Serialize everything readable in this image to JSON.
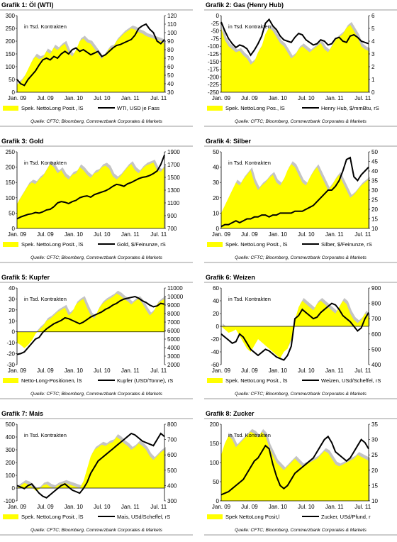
{
  "colors": {
    "fill": "#ffff00",
    "shadow": "#c4c4c4",
    "line": "#000000",
    "rule": "#999999"
  },
  "chart_data": [
    {
      "type": "area",
      "title": "Grafik 1: Öl (WTI)",
      "inner_label": "in Tsd. Kontrakten",
      "x_labels": [
        "Jan. 09",
        "Jul. 09",
        "Jan. 10",
        "Jul. 10",
        "Jan. 11",
        "Jul. 11"
      ],
      "left_axis": {
        "ticks": [
          "300",
          "250",
          "200",
          "150",
          "100",
          "50",
          "0"
        ],
        "ylim": [
          0,
          300
        ]
      },
      "right_axis": {
        "ticks": [
          "120",
          "110",
          "100",
          "90",
          "80",
          "70",
          "60",
          "50",
          "40",
          "30"
        ],
        "ylim": [
          30,
          120
        ]
      },
      "series": [
        {
          "name": "Spek. NettoLong Posit., lS",
          "axis": "left",
          "values": [
            30,
            40,
            60,
            90,
            120,
            140,
            130,
            135,
            160,
            150,
            175,
            165,
            180,
            190,
            155,
            140,
            165,
            200,
            210,
            195,
            190,
            170,
            150,
            130,
            150,
            170,
            175,
            200,
            215,
            230,
            240,
            250,
            245,
            235,
            230,
            220,
            215,
            210,
            205,
            200,
            190
          ]
        },
        {
          "name": "WTI, USD je Fass",
          "axis": "right",
          "values": [
            45,
            40,
            38,
            45,
            50,
            55,
            62,
            68,
            70,
            68,
            72,
            70,
            75,
            78,
            75,
            80,
            82,
            78,
            80,
            77,
            74,
            76,
            78,
            72,
            74,
            78,
            82,
            85,
            86,
            88,
            90,
            92,
            97,
            105,
            108,
            110,
            104,
            100,
            90,
            87,
            92
          ]
        }
      ],
      "source": "Quelle: CFTC; Bloomberg, Commerzbank Corporates & Markets"
    },
    {
      "type": "area",
      "title": "Grafik 2: Gas (Henry Hub)",
      "inner_label": "in Tsd. Kontrakten",
      "x_labels": [
        "Jan. 09",
        "Jul. 09",
        "Jan. 10",
        "Jul. 10",
        "Jan. 11",
        "Jul. 11"
      ],
      "left_axis": {
        "ticks": [
          "0",
          "-25",
          "-50",
          "-75",
          "-100",
          "-125",
          "-150",
          "-175",
          "-200",
          "-225",
          "-250"
        ],
        "ylim": [
          -250,
          0
        ]
      },
      "right_axis": {
        "ticks": [
          "6",
          "5",
          "4",
          "3",
          "2",
          "1",
          "0"
        ],
        "ylim": [
          0,
          6
        ]
      },
      "series": [
        {
          "name": "Spek. NettoLong Pos., lS",
          "axis": "left",
          "values": [
            -40,
            -80,
            -100,
            -110,
            -120,
            -115,
            -130,
            -140,
            -160,
            -150,
            -120,
            -100,
            -60,
            -40,
            -50,
            -70,
            -90,
            -100,
            -120,
            -140,
            -130,
            -110,
            -100,
            -110,
            -120,
            -110,
            -100,
            -90,
            -110,
            -120,
            -100,
            -80,
            -70,
            -60,
            -40,
            -30,
            -50,
            -70,
            -100,
            -110,
            -115
          ]
        },
        {
          "name": "Henry Hub, $/mmBtu, rS",
          "axis": "right",
          "values": [
            5.5,
            4.8,
            4.2,
            3.8,
            3.5,
            3.7,
            3.6,
            3.4,
            2.9,
            3.3,
            3.8,
            4.4,
            5.4,
            5.7,
            5.2,
            4.9,
            4.4,
            4.1,
            4.0,
            3.9,
            4.3,
            4.6,
            4.5,
            4.1,
            3.9,
            3.7,
            3.8,
            4.1,
            4.0,
            3.7,
            3.8,
            4.2,
            4.3,
            4.0,
            3.9,
            4.4,
            4.5,
            4.3,
            4.0,
            3.9,
            3.8
          ]
        }
      ],
      "source": "Quelle: CFTC; Bloomberg, Commerzbank Corporates & Markets"
    },
    {
      "type": "area",
      "title": "Grafik 3: Gold",
      "inner_label": "in Tsd. Kontrakten",
      "x_labels": [
        "Jan. 09",
        "Jul. 09",
        "Jan. 10",
        "Jul. 10",
        "Jan. 11",
        "Jul. 11"
      ],
      "left_axis": {
        "ticks": [
          "250",
          "200",
          "150",
          "100",
          "50",
          "0"
        ],
        "ylim": [
          0,
          250
        ]
      },
      "right_axis": {
        "ticks": [
          "1900",
          "1700",
          "1500",
          "1300",
          "1100",
          "900",
          "700"
        ],
        "ylim": [
          700,
          1900
        ]
      },
      "series": [
        {
          "name": "Spek. NettoLong Posit., lS",
          "axis": "left",
          "values": [
            80,
            100,
            120,
            140,
            150,
            145,
            160,
            170,
            190,
            210,
            200,
            180,
            190,
            170,
            160,
            175,
            180,
            200,
            190,
            175,
            165,
            180,
            185,
            200,
            205,
            195,
            170,
            160,
            170,
            185,
            200,
            210,
            190,
            180,
            195,
            205,
            210,
            215,
            190,
            185,
            200
          ]
        },
        {
          "name": "Gold, $/Feinunze, rS",
          "axis": "right",
          "values": [
            850,
            880,
            900,
            920,
            930,
            950,
            940,
            960,
            990,
            1000,
            1040,
            1100,
            1120,
            1110,
            1090,
            1120,
            1140,
            1180,
            1200,
            1210,
            1190,
            1230,
            1250,
            1270,
            1290,
            1320,
            1360,
            1390,
            1380,
            1360,
            1400,
            1420,
            1450,
            1480,
            1500,
            1510,
            1530,
            1560,
            1600,
            1700,
            1850
          ]
        }
      ],
      "source": "Quelle: CFTC; Bloomberg, Commerzbank Corporates & Markets"
    },
    {
      "type": "area",
      "title": "Grafik 4: Silber",
      "inner_label": "in Tsd. Kontrakten",
      "x_labels": [
        "Jan. 09",
        "Jul. 09",
        "Jan. 10",
        "Jul. 10",
        "Jan. 11",
        "Jul. 11"
      ],
      "left_axis": {
        "ticks": [
          "50",
          "40",
          "30",
          "20",
          "10",
          "0"
        ],
        "ylim": [
          0,
          50
        ]
      },
      "right_axis": {
        "ticks": [
          "50",
          "45",
          "40",
          "35",
          "30",
          "25",
          "20",
          "15",
          "10"
        ],
        "ylim": [
          10,
          50
        ]
      },
      "series": [
        {
          "name": "Spek. NettoLong Posit., lS",
          "axis": "left",
          "values": [
            10,
            15,
            20,
            25,
            30,
            28,
            32,
            35,
            38,
            30,
            25,
            28,
            30,
            33,
            35,
            30,
            28,
            32,
            38,
            42,
            40,
            35,
            30,
            28,
            33,
            37,
            40,
            35,
            30,
            25,
            28,
            32,
            35,
            30,
            25,
            20,
            22,
            25,
            28,
            30,
            32
          ]
        },
        {
          "name": "Silber, $/Feinunze, rS",
          "axis": "right",
          "values": [
            11,
            12,
            12,
            13,
            14,
            13,
            14,
            15,
            15,
            16,
            16,
            17,
            17,
            16,
            17,
            17,
            18,
            18,
            18,
            18,
            19,
            19,
            19,
            20,
            21,
            22,
            24,
            26,
            28,
            30,
            30,
            32,
            35,
            40,
            46,
            47,
            37,
            35,
            38,
            40,
            42
          ]
        }
      ],
      "source": "Quelle: CFTC; Bloomberg, Commerzbank Corporates & Markets"
    },
    {
      "type": "area",
      "title": "Grafik 5: Kupfer",
      "inner_label": "in Tsd. Kontrakten",
      "x_labels": [
        "Jan. 09",
        "Jul. 09",
        "Jan. 10",
        "Jul. 10",
        "Jan. 11",
        "Jul. 11"
      ],
      "left_axis": {
        "ticks": [
          "40",
          "30",
          "20",
          "10",
          "0",
          "-10",
          "-20",
          "-30"
        ],
        "ylim": [
          -30,
          40
        ]
      },
      "right_axis": {
        "ticks": [
          "11000",
          "10000",
          "9000",
          "8000",
          "7000",
          "6000",
          "5000",
          "4000",
          "3000",
          "2000"
        ],
        "ylim": [
          2000,
          11000
        ]
      },
      "series": [
        {
          "name": "Netto-Long-Positionen, lS",
          "axis": "left",
          "values": [
            -10,
            -12,
            -15,
            -12,
            -8,
            -2,
            2,
            5,
            10,
            12,
            15,
            18,
            20,
            22,
            15,
            18,
            25,
            28,
            30,
            22,
            15,
            12,
            20,
            25,
            28,
            30,
            32,
            35,
            33,
            30,
            28,
            25,
            28,
            30,
            26,
            20,
            15,
            18,
            25,
            28,
            30
          ]
        },
        {
          "name": "Kupfer (USD/Tonne), rS",
          "axis": "right",
          "values": [
            3200,
            3300,
            3500,
            4000,
            4500,
            5000,
            5200,
            5800,
            6200,
            6500,
            6800,
            7000,
            7200,
            7500,
            7400,
            7200,
            7000,
            6800,
            7000,
            7300,
            7600,
            7800,
            8000,
            8200,
            8500,
            8700,
            9000,
            9200,
            9500,
            9700,
            9800,
            9900,
            10000,
            9800,
            9500,
            9300,
            9000,
            8800,
            8900,
            9200,
            9100
          ]
        }
      ],
      "source": "Quelle: CFTC; Bloomberg, Commerzbank Corporates & Markets"
    },
    {
      "type": "area",
      "title": "Grafik 6: Weizen",
      "inner_label": "in Tsd. Kontrakten",
      "x_labels": [
        "Jan. 09",
        "Jul. 09",
        "Jan. 10",
        "Jul. 10",
        "Jan. 11",
        "Jul. 11"
      ],
      "left_axis": {
        "ticks": [
          "60",
          "40",
          "20",
          "0",
          "-20",
          "-40",
          "-60"
        ],
        "ylim": [
          -60,
          60
        ]
      },
      "right_axis": {
        "ticks": [
          "900",
          "800",
          "700",
          "600",
          "500",
          "400"
        ],
        "ylim": [
          400,
          900
        ]
      },
      "series": [
        {
          "name": "Spek. NettoLong Posit., lS",
          "axis": "left",
          "values": [
            0,
            -5,
            -10,
            -8,
            -5,
            -15,
            -25,
            -35,
            -40,
            -30,
            -20,
            -25,
            -30,
            -35,
            -40,
            -45,
            -50,
            -40,
            -35,
            -20,
            10,
            30,
            40,
            35,
            30,
            25,
            35,
            40,
            35,
            30,
            25,
            20,
            30,
            40,
            35,
            20,
            10,
            5,
            10,
            20,
            15
          ]
        },
        {
          "name": "Weizen, USd/Scheffel, rS",
          "axis": "right",
          "values": [
            600,
            580,
            560,
            540,
            550,
            600,
            580,
            540,
            500,
            480,
            460,
            480,
            500,
            490,
            470,
            450,
            440,
            430,
            460,
            520,
            700,
            720,
            760,
            740,
            720,
            700,
            710,
            740,
            760,
            780,
            800,
            790,
            760,
            720,
            700,
            680,
            650,
            620,
            640,
            700,
            740
          ]
        }
      ],
      "source": "Quelle: CFTC; Bloomberg, Commerzbank Corporates & Markets"
    },
    {
      "type": "area",
      "title": "Grafik 7: Mais",
      "inner_label": "in Tsd. Kontrakten",
      "x_labels": [
        "Jan. 09",
        "Jul. 09",
        "Jan. 10",
        "Jul. 10",
        "Jan. 11",
        "Jul. 11"
      ],
      "left_axis": {
        "ticks": [
          "500",
          "400",
          "300",
          "200",
          "100",
          "0",
          "-100"
        ],
        "ylim": [
          -100,
          500
        ]
      },
      "right_axis": {
        "ticks": [
          "800",
          "700",
          "600",
          "500",
          "400",
          "300"
        ],
        "ylim": [
          300,
          800
        ]
      },
      "series": [
        {
          "name": "Spek. NettoLong Posit., lS",
          "axis": "left",
          "values": [
            0,
            20,
            40,
            30,
            10,
            -20,
            -10,
            20,
            30,
            10,
            0,
            20,
            30,
            40,
            30,
            20,
            10,
            0,
            50,
            150,
            250,
            300,
            320,
            340,
            330,
            350,
            360,
            400,
            380,
            350,
            330,
            300,
            320,
            350,
            330,
            300,
            250,
            220,
            250,
            280,
            300
          ]
        },
        {
          "name": "Mais, USd/Scheffel, rS",
          "axis": "right",
          "values": [
            400,
            390,
            380,
            400,
            410,
            380,
            350,
            330,
            320,
            340,
            360,
            380,
            400,
            410,
            390,
            370,
            360,
            350,
            380,
            420,
            480,
            520,
            560,
            580,
            600,
            620,
            640,
            660,
            680,
            700,
            720,
            740,
            730,
            710,
            690,
            680,
            670,
            660,
            700,
            740,
            720
          ]
        }
      ],
      "source": "Quelle: CFTC; Bloomberg, Commerzbank Corporates & Markets"
    },
    {
      "type": "area",
      "title": "Grafik 8: Zucker",
      "inner_label": "in Tsd. Kontrakten",
      "x_labels": [
        "Jan. 09",
        "Jul. 09",
        "Jan. 10",
        "Jul. 10",
        "Jan. 11",
        "Jul. 11"
      ],
      "left_axis": {
        "ticks": [
          "200",
          "150",
          "100",
          "50",
          "0"
        ],
        "ylim": [
          0,
          200
        ]
      },
      "right_axis": {
        "ticks": [
          "35",
          "30",
          "25",
          "20",
          "15",
          "10"
        ],
        "ylim": [
          10,
          35
        ]
      },
      "series": [
        {
          "name": "Spek NettoLong Posit,l",
          "axis": "left",
          "values": [
            120,
            150,
            170,
            160,
            140,
            150,
            160,
            170,
            180,
            175,
            165,
            180,
            170,
            140,
            120,
            100,
            90,
            80,
            90,
            100,
            110,
            100,
            90,
            95,
            100,
            105,
            110,
            120,
            130,
            125,
            110,
            95,
            90,
            95,
            100,
            105,
            110,
            120,
            115,
            110,
            105
          ]
        },
        {
          "name": "Zucker, USd/Pfund, r",
          "axis": "right",
          "values": [
            12,
            12.5,
            13,
            14,
            15,
            16,
            17,
            19,
            21,
            23,
            24,
            26,
            28,
            27,
            22,
            18,
            15,
            14,
            15,
            17,
            19,
            20,
            21,
            22,
            23,
            24,
            26,
            28,
            30,
            31,
            29,
            26,
            25,
            24,
            23,
            24,
            26,
            28,
            30,
            29,
            27
          ]
        }
      ],
      "source": "Quelle: CFTC; Bloomberg, Commerzbank Corporates & Markets"
    }
  ]
}
